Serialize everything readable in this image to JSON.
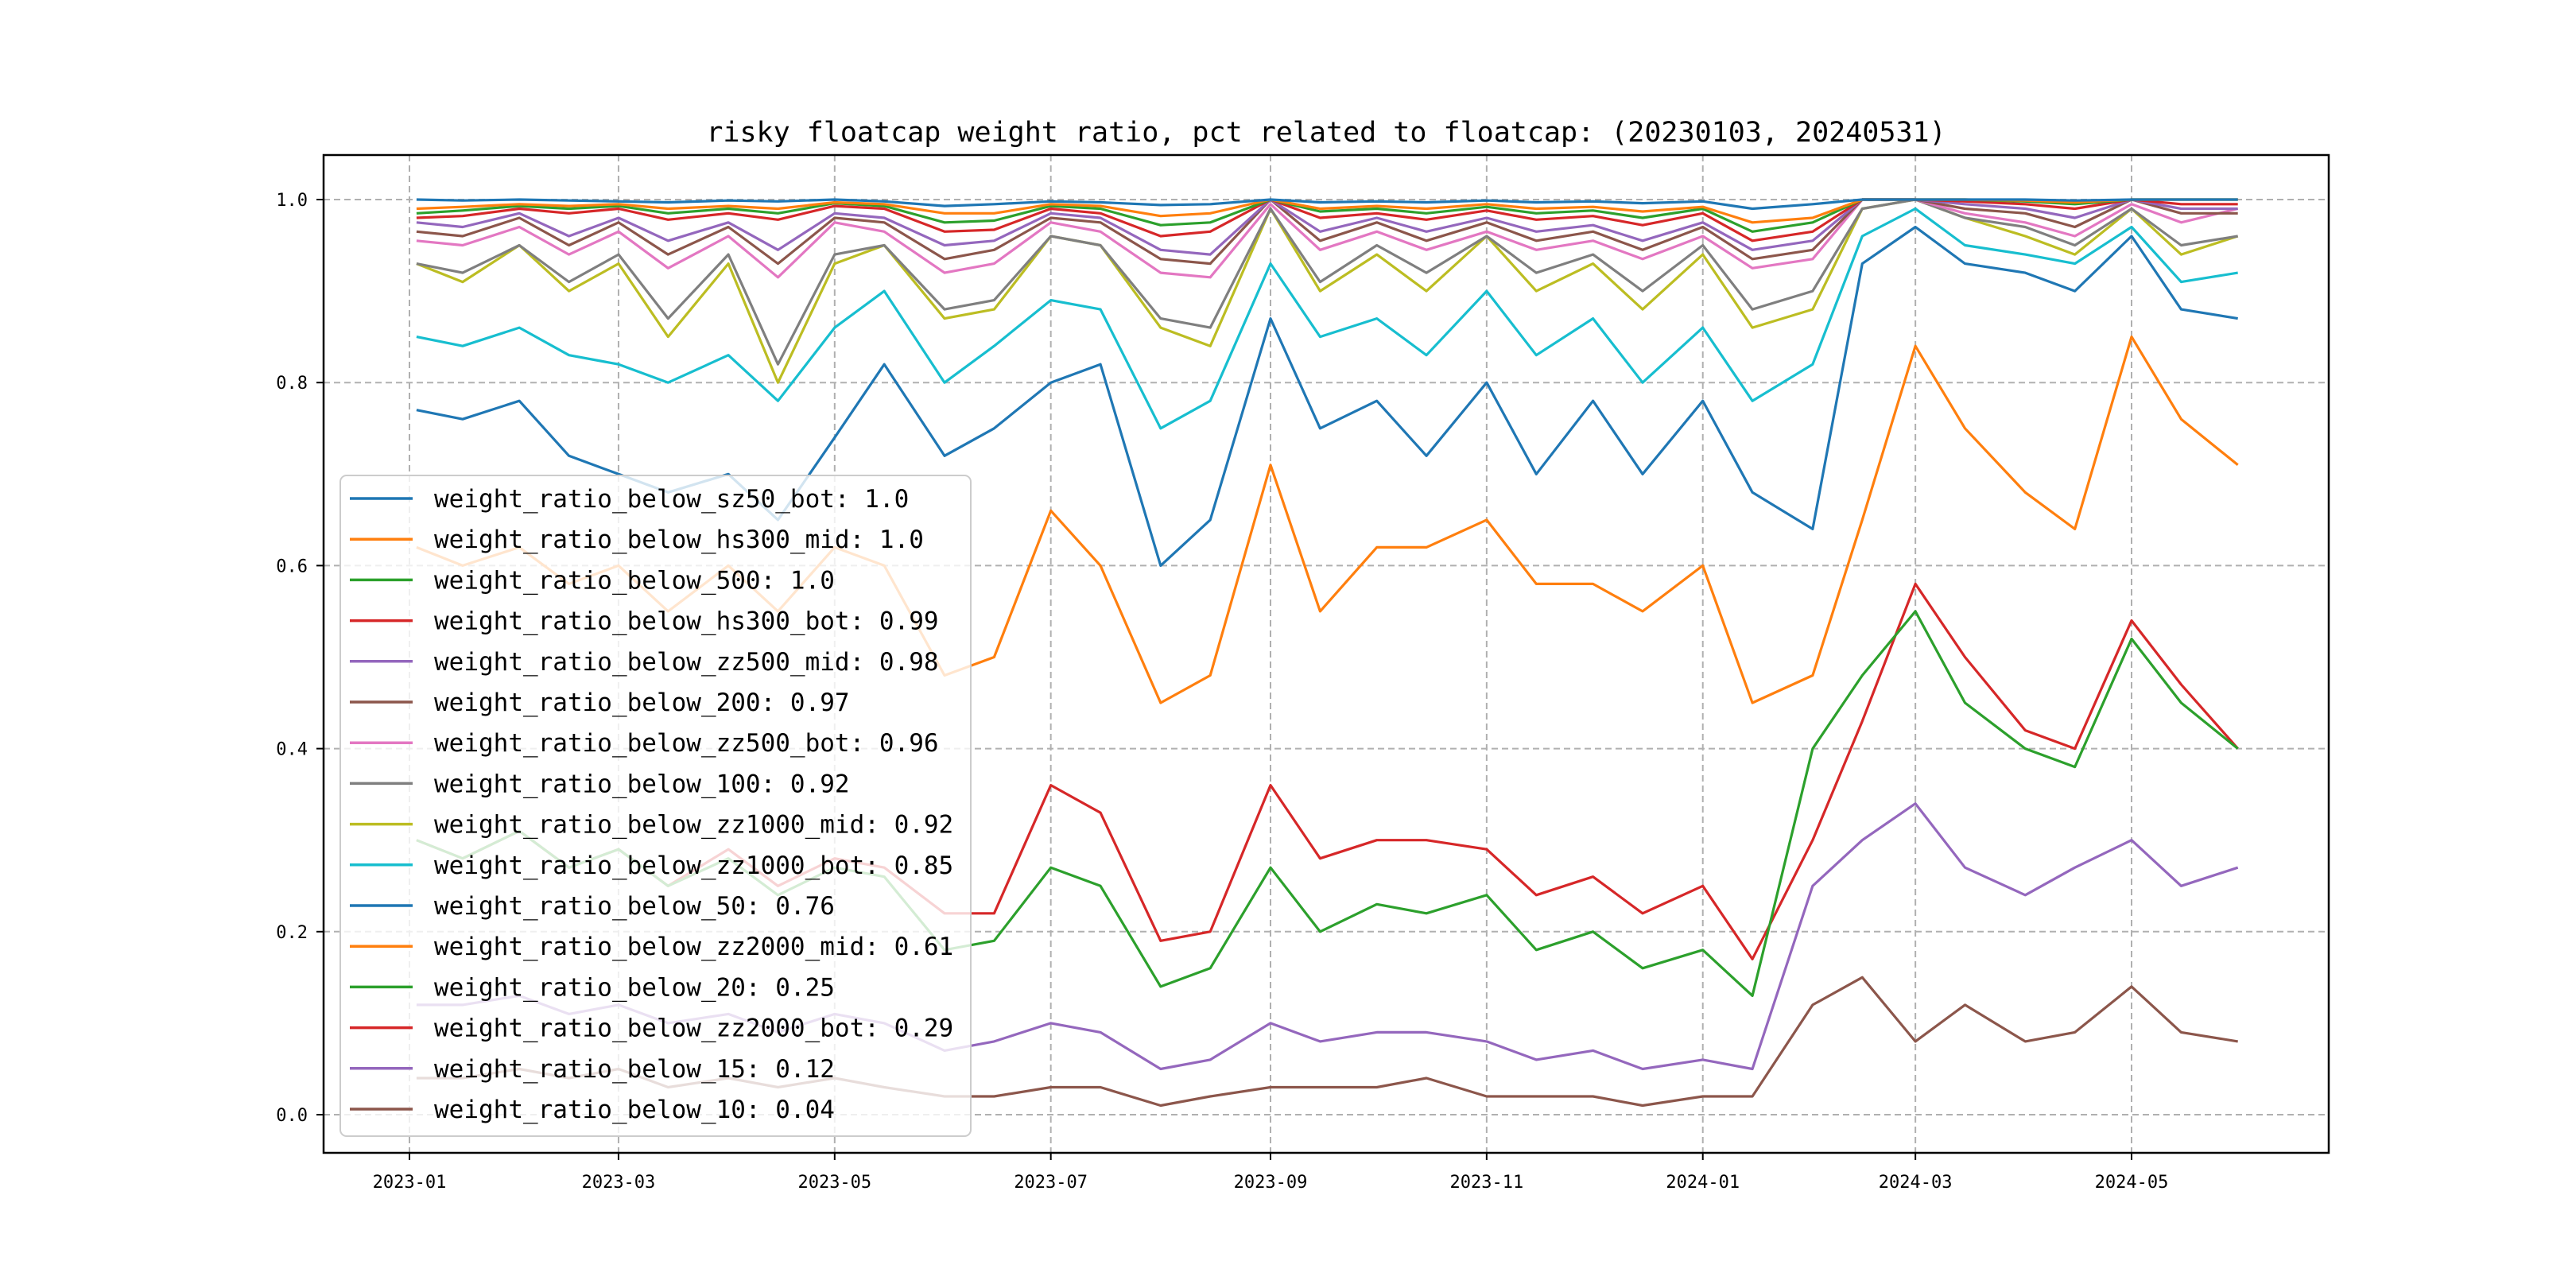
{
  "chart_data": {
    "type": "line",
    "title": "risky floatcap weight ratio, pct related to floatcap: (20230103, 20240531)",
    "xlabel": "",
    "ylabel": "",
    "ylim": [
      -0.05,
      1.05
    ],
    "grid": true,
    "legend_position": "lower-left",
    "x_ticks": [
      "2023-01",
      "2023-03",
      "2023-05",
      "2023-07",
      "2023-09",
      "2023-11",
      "2024-01",
      "2024-03",
      "2024-05"
    ],
    "y_ticks": [
      "0.0",
      "0.2",
      "0.4",
      "0.6",
      "0.8",
      "1.0"
    ],
    "x": [
      "2023-01-03",
      "2023-01-16",
      "2023-02-01",
      "2023-02-15",
      "2023-03-01",
      "2023-03-15",
      "2023-04-01",
      "2023-04-15",
      "2023-05-01",
      "2023-05-15",
      "2023-06-01",
      "2023-06-15",
      "2023-07-01",
      "2023-07-15",
      "2023-08-01",
      "2023-08-15",
      "2023-09-01",
      "2023-09-15",
      "2023-10-01",
      "2023-10-15",
      "2023-11-01",
      "2023-11-15",
      "2023-12-01",
      "2023-12-15",
      "2024-01-01",
      "2024-01-15",
      "2024-02-01",
      "2024-02-15",
      "2024-03-01",
      "2024-03-15",
      "2024-04-01",
      "2024-04-15",
      "2024-05-01",
      "2024-05-15",
      "2024-05-31"
    ],
    "series": [
      {
        "name": "weight_ratio_below_sz50_bot: 1.0",
        "color": "#1f77b4",
        "values": [
          1.0,
          0.999,
          1.0,
          0.999,
          0.998,
          0.997,
          0.999,
          0.998,
          1.0,
          0.998,
          0.993,
          0.995,
          0.998,
          0.997,
          0.994,
          0.995,
          1.0,
          0.997,
          0.998,
          0.997,
          0.999,
          0.997,
          0.998,
          0.996,
          0.998,
          0.99,
          0.995,
          1.0,
          1.0,
          1.0,
          1.0,
          0.999,
          1.0,
          1.0,
          1.0
        ]
      },
      {
        "name": "weight_ratio_below_hs300_mid: 1.0",
        "color": "#ff7f0e",
        "values": [
          0.99,
          0.992,
          0.995,
          0.993,
          0.995,
          0.99,
          0.993,
          0.99,
          0.997,
          0.995,
          0.985,
          0.985,
          0.995,
          0.993,
          0.982,
          0.985,
          1.0,
          0.99,
          0.993,
          0.99,
          0.995,
          0.99,
          0.992,
          0.987,
          0.992,
          0.975,
          0.98,
          1.0,
          1.0,
          1.0,
          0.999,
          0.997,
          1.0,
          1.0,
          1.0
        ]
      },
      {
        "name": "weight_ratio_below_500: 1.0",
        "color": "#2ca02c",
        "values": [
          0.985,
          0.988,
          0.993,
          0.99,
          0.993,
          0.985,
          0.99,
          0.985,
          0.996,
          0.993,
          0.975,
          0.977,
          0.993,
          0.99,
          0.972,
          0.975,
          1.0,
          0.987,
          0.99,
          0.985,
          0.992,
          0.985,
          0.988,
          0.98,
          0.99,
          0.965,
          0.975,
          1.0,
          1.0,
          1.0,
          0.998,
          0.995,
          1.0,
          1.0,
          1.0
        ]
      },
      {
        "name": "weight_ratio_below_hs300_bot: 0.99",
        "color": "#d62728",
        "values": [
          0.98,
          0.982,
          0.99,
          0.985,
          0.99,
          0.978,
          0.985,
          0.978,
          0.993,
          0.99,
          0.965,
          0.967,
          0.99,
          0.985,
          0.96,
          0.965,
          1.0,
          0.98,
          0.985,
          0.978,
          0.988,
          0.978,
          0.982,
          0.972,
          0.985,
          0.955,
          0.965,
          1.0,
          1.0,
          0.998,
          0.995,
          0.99,
          1.0,
          0.995,
          0.995
        ]
      },
      {
        "name": "weight_ratio_below_zz500_mid: 0.98",
        "color": "#9467bd",
        "values": [
          0.975,
          0.97,
          0.985,
          0.96,
          0.98,
          0.955,
          0.975,
          0.945,
          0.985,
          0.98,
          0.95,
          0.955,
          0.985,
          0.98,
          0.945,
          0.94,
          1.0,
          0.965,
          0.98,
          0.965,
          0.98,
          0.965,
          0.972,
          0.955,
          0.975,
          0.945,
          0.955,
          1.0,
          1.0,
          0.995,
          0.99,
          0.98,
          1.0,
          0.99,
          0.99
        ]
      },
      {
        "name": "weight_ratio_below_200: 0.97",
        "color": "#8c564b",
        "values": [
          0.965,
          0.96,
          0.98,
          0.95,
          0.975,
          0.94,
          0.97,
          0.93,
          0.98,
          0.975,
          0.935,
          0.945,
          0.98,
          0.975,
          0.935,
          0.93,
          1.0,
          0.955,
          0.975,
          0.955,
          0.975,
          0.955,
          0.965,
          0.945,
          0.97,
          0.935,
          0.945,
          1.0,
          1.0,
          0.99,
          0.985,
          0.97,
          1.0,
          0.985,
          0.985
        ]
      },
      {
        "name": "weight_ratio_below_zz500_bot: 0.96",
        "color": "#e377c2",
        "values": [
          0.955,
          0.95,
          0.97,
          0.94,
          0.965,
          0.925,
          0.96,
          0.915,
          0.975,
          0.965,
          0.92,
          0.93,
          0.975,
          0.965,
          0.92,
          0.915,
          0.995,
          0.945,
          0.965,
          0.945,
          0.965,
          0.945,
          0.955,
          0.935,
          0.96,
          0.925,
          0.935,
          1.0,
          1.0,
          0.985,
          0.975,
          0.96,
          0.995,
          0.975,
          0.99
        ]
      },
      {
        "name": "weight_ratio_below_100: 0.92",
        "color": "#7f7f7f",
        "values": [
          0.93,
          0.92,
          0.95,
          0.91,
          0.94,
          0.87,
          0.94,
          0.82,
          0.94,
          0.95,
          0.88,
          0.89,
          0.96,
          0.95,
          0.87,
          0.86,
          0.99,
          0.91,
          0.95,
          0.92,
          0.96,
          0.92,
          0.94,
          0.9,
          0.95,
          0.88,
          0.9,
          0.99,
          1.0,
          0.98,
          0.97,
          0.95,
          0.99,
          0.95,
          0.96
        ]
      },
      {
        "name": "weight_ratio_below_zz1000_mid: 0.92",
        "color": "#bcbd22",
        "values": [
          0.93,
          0.91,
          0.95,
          0.9,
          0.93,
          0.85,
          0.93,
          0.8,
          0.93,
          0.95,
          0.87,
          0.88,
          0.96,
          0.95,
          0.86,
          0.84,
          0.99,
          0.9,
          0.94,
          0.9,
          0.96,
          0.9,
          0.93,
          0.88,
          0.94,
          0.86,
          0.88,
          0.99,
          1.0,
          0.98,
          0.96,
          0.94,
          0.99,
          0.94,
          0.96
        ]
      },
      {
        "name": "weight_ratio_below_zz1000_bot: 0.85",
        "color": "#17becf",
        "values": [
          0.85,
          0.84,
          0.86,
          0.83,
          0.82,
          0.8,
          0.83,
          0.78,
          0.86,
          0.9,
          0.8,
          0.84,
          0.89,
          0.88,
          0.75,
          0.78,
          0.93,
          0.85,
          0.87,
          0.83,
          0.9,
          0.83,
          0.87,
          0.8,
          0.86,
          0.78,
          0.82,
          0.96,
          0.99,
          0.95,
          0.94,
          0.93,
          0.97,
          0.91,
          0.92
        ]
      },
      {
        "name": "weight_ratio_below_50: 0.76",
        "color": "#1f77b4",
        "values": [
          0.77,
          0.76,
          0.78,
          0.72,
          0.7,
          0.68,
          0.7,
          0.65,
          0.74,
          0.82,
          0.72,
          0.75,
          0.8,
          0.82,
          0.6,
          0.65,
          0.87,
          0.75,
          0.78,
          0.72,
          0.8,
          0.7,
          0.78,
          0.7,
          0.78,
          0.68,
          0.64,
          0.93,
          0.97,
          0.93,
          0.92,
          0.9,
          0.96,
          0.88,
          0.87
        ]
      },
      {
        "name": "weight_ratio_below_zz2000_mid: 0.61",
        "color": "#ff7f0e",
        "values": [
          0.62,
          0.6,
          0.62,
          0.58,
          0.6,
          0.55,
          0.6,
          0.55,
          0.62,
          0.6,
          0.48,
          0.5,
          0.66,
          0.6,
          0.45,
          0.48,
          0.71,
          0.55,
          0.62,
          0.62,
          0.65,
          0.58,
          0.58,
          0.55,
          0.6,
          0.45,
          0.48,
          0.65,
          0.84,
          0.75,
          0.68,
          0.64,
          0.85,
          0.76,
          0.71
        ]
      },
      {
        "name": "weight_ratio_below_20: 0.25",
        "color": "#2ca02c",
        "values": [
          0.3,
          0.28,
          0.31,
          0.27,
          0.29,
          0.25,
          0.28,
          0.24,
          0.27,
          0.26,
          0.18,
          0.19,
          0.27,
          0.25,
          0.14,
          0.16,
          0.27,
          0.2,
          0.23,
          0.22,
          0.24,
          0.18,
          0.2,
          0.16,
          0.18,
          0.13,
          0.4,
          0.48,
          0.55,
          0.45,
          0.4,
          0.38,
          0.52,
          0.45,
          0.4
        ]
      },
      {
        "name": "weight_ratio_below_zz2000_bot: 0.29",
        "color": "#d62728",
        "values": [
          0.3,
          0.28,
          0.31,
          0.27,
          0.29,
          0.25,
          0.29,
          0.25,
          0.28,
          0.27,
          0.22,
          0.22,
          0.36,
          0.33,
          0.19,
          0.2,
          0.36,
          0.28,
          0.3,
          0.3,
          0.29,
          0.24,
          0.26,
          0.22,
          0.25,
          0.17,
          0.3,
          0.43,
          0.58,
          0.5,
          0.42,
          0.4,
          0.54,
          0.47,
          0.4
        ]
      },
      {
        "name": "weight_ratio_below_15: 0.12",
        "color": "#9467bd",
        "values": [
          0.12,
          0.12,
          0.13,
          0.11,
          0.12,
          0.1,
          0.11,
          0.09,
          0.11,
          0.1,
          0.07,
          0.08,
          0.1,
          0.09,
          0.05,
          0.06,
          0.1,
          0.08,
          0.09,
          0.09,
          0.08,
          0.06,
          0.07,
          0.05,
          0.06,
          0.05,
          0.25,
          0.3,
          0.34,
          0.27,
          0.24,
          0.27,
          0.3,
          0.25,
          0.27
        ]
      },
      {
        "name": "weight_ratio_below_10: 0.04",
        "color": "#8c564b",
        "values": [
          0.04,
          0.04,
          0.05,
          0.04,
          0.05,
          0.03,
          0.04,
          0.03,
          0.04,
          0.03,
          0.02,
          0.02,
          0.03,
          0.03,
          0.01,
          0.02,
          0.03,
          0.03,
          0.03,
          0.04,
          0.02,
          0.02,
          0.02,
          0.01,
          0.02,
          0.02,
          0.12,
          0.15,
          0.08,
          0.12,
          0.08,
          0.09,
          0.14,
          0.09,
          0.08
        ]
      }
    ]
  }
}
